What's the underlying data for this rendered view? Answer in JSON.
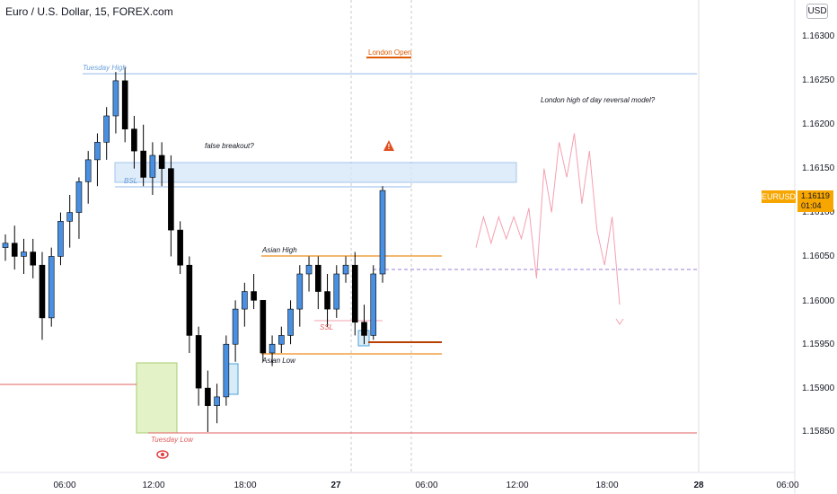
{
  "header": {
    "title": "Euro / U.S. Dollar, 15, FOREX.com",
    "currency": "USD"
  },
  "price_axis": {
    "ticks": [
      "1.16300",
      "1.16250",
      "1.16200",
      "1.16150",
      "1.16100",
      "1.16050",
      "1.16000",
      "1.15950",
      "1.15900",
      "1.15850"
    ],
    "current_symbol": "EURUSD",
    "current_price": "1.16119",
    "countdown": "01:04"
  },
  "time_axis": {
    "ticks": [
      "06:00",
      "12:00",
      "18:00",
      "27",
      "06:00",
      "12:00",
      "18:00",
      "28",
      "06:00"
    ]
  },
  "annotations": {
    "tuesday_high": "Tuesday High",
    "tuesday_low": "Tuesday Low",
    "london_open": "London Open",
    "false_breakout": "false breakout?",
    "bsl": "BSL",
    "asian_high": "Asian High",
    "asian_low": "Asian Low",
    "ssl": "SSL",
    "reversal_model": "London high of day reversal model?"
  },
  "colors": {
    "bull_body": "#4a90e2",
    "bear_body": "#000000",
    "tuesday_high_line": "#90b8e8",
    "tuesday_low_line": "#e06060",
    "asian_line": "#f0a040",
    "london_open": "#e05a00",
    "projection": "#f4a0b0",
    "current_price": "#f7a600"
  },
  "chart_data": {
    "type": "candlestick",
    "title": "Euro / U.S. Dollar, 15, FOREX.com",
    "candles_ohlc": [
      [
        1.1606,
        1.16075,
        1.16045,
        1.16065
      ],
      [
        1.16065,
        1.16085,
        1.16035,
        1.1605
      ],
      [
        1.1605,
        1.1607,
        1.1603,
        1.16055
      ],
      [
        1.16055,
        1.1607,
        1.16025,
        1.1604
      ],
      [
        1.1604,
        1.16055,
        1.15955,
        1.1598
      ],
      [
        1.1598,
        1.1606,
        1.1597,
        1.1605
      ],
      [
        1.1605,
        1.161,
        1.1604,
        1.1609
      ],
      [
        1.1609,
        1.1612,
        1.1606,
        1.161
      ],
      [
        1.161,
        1.1614,
        1.1607,
        1.16135
      ],
      [
        1.16135,
        1.1617,
        1.1611,
        1.1616
      ],
      [
        1.1616,
        1.1619,
        1.1613,
        1.1618
      ],
      [
        1.1618,
        1.1622,
        1.1616,
        1.1621
      ],
      [
        1.1621,
        1.1626,
        1.1619,
        1.1625
      ],
      [
        1.1625,
        1.16265,
        1.1618,
        1.16195
      ],
      [
        1.16195,
        1.1621,
        1.1615,
        1.1617
      ],
      [
        1.1617,
        1.162,
        1.1613,
        1.1614
      ],
      [
        1.1614,
        1.1618,
        1.1612,
        1.16165
      ],
      [
        1.16165,
        1.1618,
        1.1613,
        1.1615
      ],
      [
        1.1615,
        1.16165,
        1.1605,
        1.1608
      ],
      [
        1.1608,
        1.1609,
        1.1603,
        1.1604
      ],
      [
        1.1604,
        1.1605,
        1.1594,
        1.1596
      ],
      [
        1.1596,
        1.1597,
        1.1588,
        1.159
      ],
      [
        1.159,
        1.1592,
        1.1585,
        1.1588
      ],
      [
        1.1588,
        1.15905,
        1.1586,
        1.1589
      ],
      [
        1.1589,
        1.1596,
        1.1588,
        1.1595
      ],
      [
        1.1595,
        1.16,
        1.1593,
        1.1599
      ],
      [
        1.1599,
        1.1602,
        1.1597,
        1.1601
      ],
      [
        1.1601,
        1.1603,
        1.1599,
        1.16
      ],
      [
        1.16,
        1.15995,
        1.1593,
        1.1594
      ],
      [
        1.1594,
        1.1596,
        1.15925,
        1.1595
      ],
      [
        1.1595,
        1.1597,
        1.1594,
        1.1596
      ],
      [
        1.1596,
        1.16,
        1.1595,
        1.1599
      ],
      [
        1.1599,
        1.1604,
        1.1597,
        1.1603
      ],
      [
        1.1603,
        1.1605,
        1.1601,
        1.1604
      ],
      [
        1.1604,
        1.1605,
        1.1599,
        1.1601
      ],
      [
        1.1601,
        1.1603,
        1.1597,
        1.1599
      ],
      [
        1.1599,
        1.1604,
        1.1598,
        1.1603
      ],
      [
        1.1603,
        1.1605,
        1.1602,
        1.1604
      ],
      [
        1.1604,
        1.16055,
        1.1596,
        1.15975
      ],
      [
        1.15975,
        1.15995,
        1.1595,
        1.1596
      ],
      [
        1.1596,
        1.1604,
        1.15955,
        1.1603
      ],
      [
        1.1603,
        1.1613,
        1.1602,
        1.16125
      ]
    ],
    "levels": [
      {
        "name": "Tuesday High",
        "price": 1.1626
      },
      {
        "name": "BSL",
        "price": 1.1613
      },
      {
        "name": "Asian High",
        "price": 1.16052
      },
      {
        "name": "Asian Low",
        "price": 1.1594
      },
      {
        "name": "SSL",
        "price": 1.15976
      },
      {
        "name": "Tuesday Low",
        "price": 1.1585
      }
    ],
    "zones": [
      {
        "name": "false breakout zone",
        "price_top": 1.16158,
        "price_bottom": 1.16135
      }
    ],
    "projection_path": [
      1.1606,
      1.16095,
      1.16065,
      1.16095,
      1.1607,
      1.16095,
      1.1607,
      1.16105,
      1.16025,
      1.1615,
      1.161,
      1.1618,
      1.1614,
      1.1619,
      1.1611,
      1.1617,
      1.1608,
      1.1604,
      1.16095,
      1.15995
    ],
    "ylim": [
      1.1582,
      1.1633
    ]
  }
}
